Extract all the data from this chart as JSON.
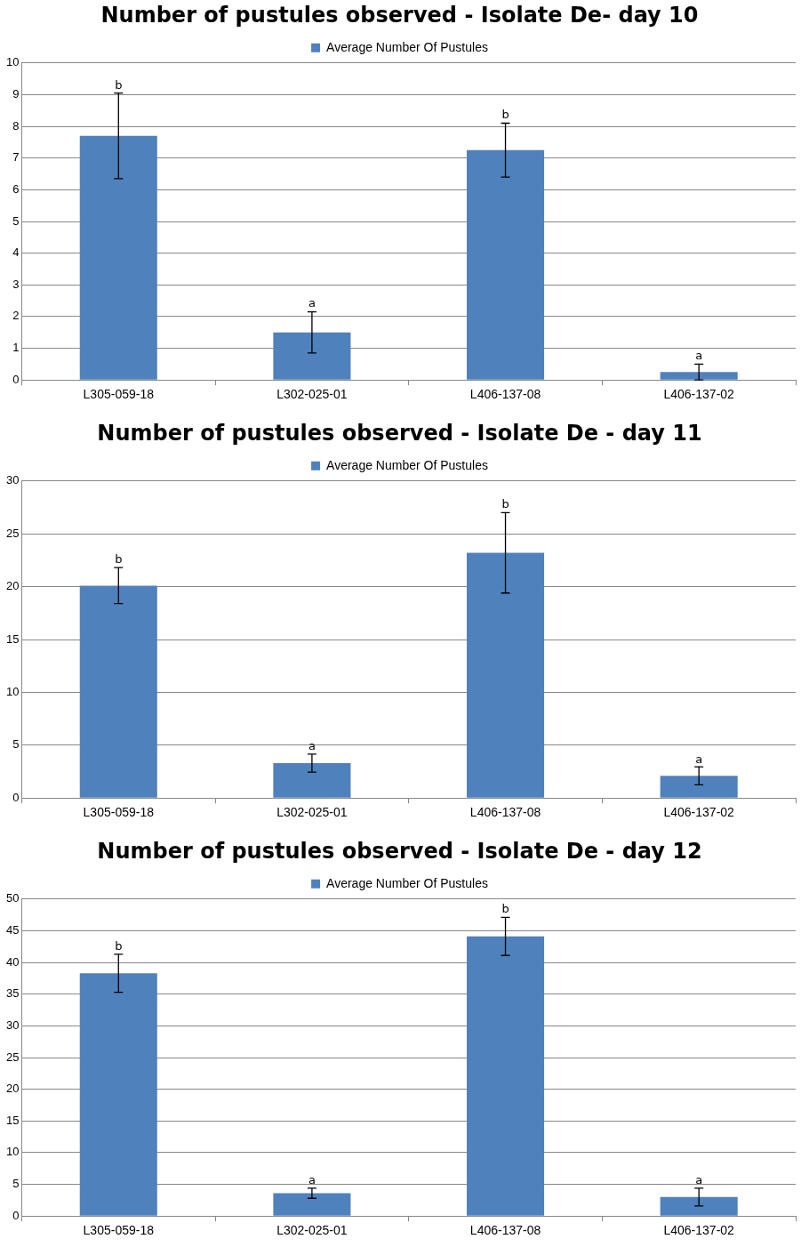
{
  "chart_data": [
    {
      "type": "bar",
      "title": "Number of pustules observed - Isolate De- day 10",
      "categories": [
        "L305-059-18",
        "L302-025-01",
        "L406-137-08",
        "L406-137-02"
      ],
      "series": [
        {
          "name": "Average Number Of Pustules",
          "color": "#4f81bd",
          "values": [
            7.7,
            1.5,
            7.25,
            0.25
          ],
          "errors": [
            1.35,
            0.65,
            0.85,
            0.25
          ]
        }
      ],
      "ylim": [
        0,
        10
      ],
      "yticks": [
        0,
        1,
        2,
        3,
        4,
        5,
        6,
        7,
        8,
        9,
        10
      ],
      "grid": "y",
      "legend": "top",
      "annotations": [
        {
          "text": "b",
          "x": "L305-059-18",
          "y": 9.05
        },
        {
          "text": "a",
          "x": "L302-025-01",
          "y": 2.15
        },
        {
          "text": "b",
          "x": "L406-137-08",
          "y": 8.1
        },
        {
          "text": "a",
          "x": "L406-137-02",
          "y": 0.5
        }
      ]
    },
    {
      "type": "bar",
      "title": "Number of pustules observed - Isolate De - day 11",
      "categories": [
        "L305-059-18",
        "L302-025-01",
        "L406-137-08",
        "L406-137-02"
      ],
      "series": [
        {
          "name": "Average Number Of Pustules",
          "color": "#4f81bd",
          "values": [
            20.1,
            3.3,
            23.2,
            2.1
          ],
          "errors": [
            1.7,
            0.85,
            3.8,
            0.85
          ]
        }
      ],
      "ylim": [
        0,
        30
      ],
      "yticks": [
        0,
        5,
        10,
        15,
        20,
        25,
        30
      ],
      "grid": "y",
      "legend": "top",
      "annotations": [
        {
          "text": "b",
          "x": "L305-059-18",
          "y": 21.8
        },
        {
          "text": "a",
          "x": "L302-025-01",
          "y": 4.1
        },
        {
          "text": "b",
          "x": "L406-137-08",
          "y": 27
        },
        {
          "text": "a",
          "x": "L406-137-02",
          "y": 2.9
        }
      ]
    },
    {
      "type": "bar",
      "title": "Number of pustules observed - Isolate De - day 12",
      "categories": [
        "L305-059-18",
        "L302-025-01",
        "L406-137-08",
        "L406-137-02"
      ],
      "series": [
        {
          "name": "Average Number Of Pustules",
          "color": "#4f81bd",
          "values": [
            38.3,
            3.6,
            44.1,
            3
          ],
          "errors": [
            3,
            0.8,
            3,
            1.4
          ]
        }
      ],
      "ylim": [
        0,
        50
      ],
      "yticks": [
        0,
        5,
        10,
        15,
        20,
        25,
        30,
        35,
        40,
        45,
        50
      ],
      "grid": "y",
      "legend": "top",
      "annotations": [
        {
          "text": "b",
          "x": "L305-059-18",
          "y": 41.3
        },
        {
          "text": "a",
          "x": "L302-025-01",
          "y": 4.4
        },
        {
          "text": "b",
          "x": "L406-137-08",
          "y": 47.1
        },
        {
          "text": "a",
          "x": "L406-137-02",
          "y": 4.4
        }
      ]
    }
  ]
}
